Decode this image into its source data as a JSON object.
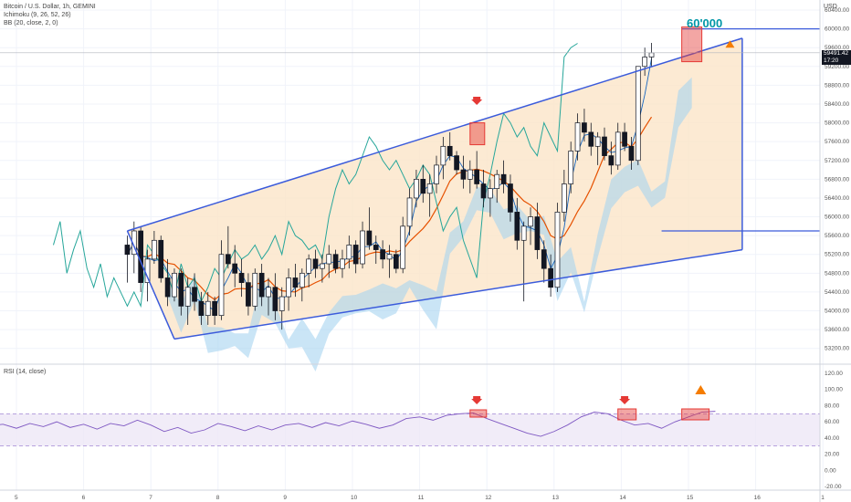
{
  "legend": {
    "symbol": "Bitcoin / U.S. Dollar, 1h, GEMINI",
    "ichimoku": "Ichimoku (9, 26, 52, 26)",
    "bb": "BB (20, close, 2, 0)",
    "rsi": "RSI (14, close)"
  },
  "currency": "USD",
  "annotation_label": "60'000",
  "last_price": "59491.42",
  "countdown": "17:20",
  "colors": {
    "candle": "#131722",
    "channel": "#3b5bdb",
    "channel_fill": "#fbe5c8",
    "conversion": "#1565c0",
    "base": "#c62828",
    "lagging": "#26a69a",
    "cloud_bull": "#a7d3f0",
    "cloud_bear": "#f4a9a0",
    "bb_basis": "#e65100",
    "rsi_line": "#7e57c2",
    "rsi_band": "#ede7f6",
    "marker": "#e53935"
  },
  "chart_data": [
    {
      "type": "candlestick",
      "title": "Bitcoin / U.S. Dollar, 1h, GEMINI",
      "ylabel": "USD",
      "ylim": [
        53000,
        60400
      ],
      "x_ticks": [
        "5",
        "6",
        "7",
        "8",
        "9",
        "10",
        "11",
        "12",
        "13",
        "14",
        "15",
        "16",
        "1"
      ],
      "y_ticks": [
        53200,
        53600,
        54000,
        54400,
        54800,
        55200,
        55600,
        56000,
        56400,
        56800,
        57200,
        57600,
        58000,
        58400,
        58800,
        59200,
        59600,
        60000,
        60400
      ],
      "series": [
        {
          "name": "BTCUSD",
          "values": [
            [
              6.65,
              55400,
              55600,
              54600,
              55200
            ],
            [
              6.75,
              55200,
              55900,
              54800,
              55700
            ],
            [
              6.85,
              55700,
              55800,
              54400,
              54600
            ],
            [
              6.95,
              54600,
              55300,
              54200,
              55100
            ],
            [
              7.05,
              55100,
              55700,
              55000,
              55500
            ],
            [
              7.15,
              55500,
              55600,
              54600,
              54700
            ],
            [
              7.25,
              54700,
              55100,
              54100,
              54300
            ],
            [
              7.35,
              54300,
              54900,
              54200,
              54800
            ],
            [
              7.45,
              54800,
              54900,
              53900,
              54100
            ],
            [
              7.55,
              54100,
              54700,
              53700,
              54500
            ],
            [
              7.65,
              54500,
              54800,
              54000,
              54200
            ],
            [
              7.75,
              54200,
              54400,
              53700,
              53900
            ],
            [
              7.85,
              53900,
              54400,
              53700,
              54200
            ],
            [
              7.95,
              54200,
              54300,
              53700,
              53900
            ],
            [
              8.05,
              53900,
              55500,
              53800,
              55200
            ],
            [
              8.15,
              55200,
              55800,
              54900,
              55000
            ],
            [
              8.25,
              55000,
              55400,
              54500,
              54800
            ],
            [
              8.35,
              54800,
              55100,
              54300,
              54600
            ],
            [
              8.45,
              54600,
              54800,
              53900,
              54100
            ],
            [
              8.55,
              54100,
              54900,
              54000,
              54800
            ],
            [
              8.65,
              54800,
              55000,
              54100,
              54300
            ],
            [
              8.75,
              54300,
              54700,
              53900,
              54500
            ],
            [
              8.85,
              54500,
              54800,
              53800,
              54000
            ],
            [
              8.95,
              54000,
              54500,
              53600,
              54300
            ],
            [
              9.05,
              54300,
              54900,
              54000,
              54700
            ],
            [
              9.15,
              54700,
              55000,
              54300,
              54500
            ],
            [
              9.25,
              54500,
              54900,
              54200,
              54800
            ],
            [
              9.35,
              54800,
              55200,
              54500,
              55100
            ],
            [
              9.45,
              55100,
              55300,
              54700,
              54900
            ],
            [
              9.55,
              54900,
              55200,
              54600,
              55000
            ],
            [
              9.65,
              55000,
              55400,
              54700,
              55200
            ],
            [
              9.75,
              55200,
              55300,
              54800,
              54900
            ],
            [
              9.85,
              54900,
              55300,
              54700,
              55100
            ],
            [
              9.95,
              55100,
              55600,
              54900,
              55400
            ],
            [
              10.05,
              55400,
              55500,
              54800,
              55000
            ],
            [
              10.15,
              55000,
              55900,
              54900,
              55700
            ],
            [
              10.25,
              55700,
              56200,
              55300,
              55400
            ],
            [
              10.35,
              55400,
              55600,
              55000,
              55300
            ],
            [
              10.45,
              55300,
              55500,
              54900,
              55100
            ],
            [
              10.55,
              55100,
              55400,
              54700,
              55200
            ],
            [
              10.65,
              55200,
              55300,
              54800,
              54900
            ],
            [
              10.75,
              54900,
              56000,
              54800,
              55800
            ],
            [
              10.85,
              55800,
              56600,
              55600,
              56400
            ],
            [
              10.95,
              56400,
              57000,
              56200,
              56800
            ],
            [
              11.05,
              56800,
              57100,
              56300,
              56500
            ],
            [
              11.15,
              56500,
              56900,
              56000,
              56700
            ],
            [
              11.25,
              56700,
              57300,
              56500,
              57100
            ],
            [
              11.35,
              57100,
              57700,
              56800,
              57500
            ],
            [
              11.45,
              57500,
              57800,
              57200,
              57300
            ],
            [
              11.55,
              57300,
              57400,
              56900,
              57000
            ],
            [
              11.65,
              57000,
              57300,
              56600,
              56800
            ],
            [
              11.75,
              56800,
              57200,
              56500,
              57000
            ],
            [
              11.85,
              57000,
              57400,
              56600,
              56700
            ],
            [
              11.95,
              56700,
              57000,
              56200,
              56400
            ],
            [
              12.05,
              56400,
              56800,
              56000,
              56600
            ],
            [
              12.15,
              56600,
              57000,
              56300,
              56900
            ],
            [
              12.25,
              56900,
              57200,
              56500,
              56700
            ],
            [
              12.35,
              56700,
              56900,
              55900,
              56100
            ],
            [
              12.45,
              56100,
              56400,
              55300,
              55500
            ],
            [
              12.55,
              55500,
              55900,
              54200,
              55800
            ],
            [
              12.65,
              55800,
              56200,
              55400,
              56000
            ],
            [
              12.75,
              56000,
              56300,
              55100,
              55300
            ],
            [
              12.85,
              55300,
              55500,
              54600,
              54900
            ],
            [
              12.95,
              54900,
              55200,
              54300,
              54500
            ],
            [
              13.05,
              54500,
              56300,
              54400,
              56100
            ],
            [
              13.15,
              56100,
              57000,
              55900,
              56700
            ],
            [
              13.25,
              56700,
              57600,
              56500,
              57400
            ],
            [
              13.35,
              57400,
              58200,
              57200,
              58000
            ],
            [
              13.45,
              58000,
              58300,
              57600,
              57800
            ],
            [
              13.55,
              57800,
              58000,
              57300,
              57500
            ],
            [
              13.65,
              57500,
              57800,
              57100,
              57700
            ],
            [
              13.75,
              57700,
              57900,
              57200,
              57300
            ],
            [
              13.85,
              57300,
              57600,
              56900,
              57100
            ],
            [
              13.95,
              57100,
              58000,
              57000,
              57800
            ],
            [
              14.05,
              57800,
              58000,
              57400,
              57500
            ],
            [
              14.15,
              57500,
              57700,
              57000,
              57200
            ],
            [
              14.25,
              57200,
              58700,
              57100,
              59200
            ],
            [
              14.35,
              59200,
              59600,
              59000,
              59400
            ],
            [
              14.45,
              59400,
              59700,
              59200,
              59491
            ]
          ]
        },
        {
          "name": "Channel upper",
          "values": [
            [
              6.65,
              55700
            ],
            [
              15.8,
              59800
            ]
          ]
        },
        {
          "name": "Channel lower",
          "values": [
            [
              7.35,
              53400
            ],
            [
              15.8,
              55300
            ]
          ]
        },
        {
          "name": "Horizontal level",
          "values": [
            [
              14.9,
              60000
            ],
            [
              16.0,
              60000
            ]
          ]
        },
        {
          "name": "Support level",
          "values": [
            [
              14.6,
              55700
            ],
            [
              16.0,
              55700
            ]
          ]
        }
      ],
      "annotations": [
        "60'000",
        "59491.42",
        "17:20"
      ]
    },
    {
      "type": "line",
      "title": "RSI (14, close)",
      "ylim": [
        -20,
        120
      ],
      "y_ticks": [
        -20,
        0,
        20,
        40,
        60,
        80,
        100,
        120
      ],
      "bands": [
        30,
        70
      ],
      "series": [
        {
          "name": "RSI",
          "values": [
            [
              4.6,
              55
            ],
            [
              4.8,
              57
            ],
            [
              5.0,
              52
            ],
            [
              5.2,
              58
            ],
            [
              5.4,
              54
            ],
            [
              5.6,
              60
            ],
            [
              5.8,
              53
            ],
            [
              6.0,
              57
            ],
            [
              6.2,
              51
            ],
            [
              6.4,
              58
            ],
            [
              6.6,
              55
            ],
            [
              6.8,
              62
            ],
            [
              7.0,
              56
            ],
            [
              7.2,
              48
            ],
            [
              7.4,
              53
            ],
            [
              7.6,
              46
            ],
            [
              7.8,
              50
            ],
            [
              8.0,
              58
            ],
            [
              8.2,
              54
            ],
            [
              8.4,
              49
            ],
            [
              8.6,
              55
            ],
            [
              8.8,
              50
            ],
            [
              9.0,
              56
            ],
            [
              9.2,
              58
            ],
            [
              9.4,
              53
            ],
            [
              9.6,
              59
            ],
            [
              9.8,
              55
            ],
            [
              10.0,
              61
            ],
            [
              10.2,
              57
            ],
            [
              10.4,
              52
            ],
            [
              10.6,
              56
            ],
            [
              10.8,
              64
            ],
            [
              11.0,
              66
            ],
            [
              11.2,
              62
            ],
            [
              11.4,
              68
            ],
            [
              11.6,
              70
            ],
            [
              11.8,
              71
            ],
            [
              12.0,
              64
            ],
            [
              12.2,
              58
            ],
            [
              12.4,
              52
            ],
            [
              12.6,
              46
            ],
            [
              12.8,
              42
            ],
            [
              13.0,
              48
            ],
            [
              13.2,
              56
            ],
            [
              13.4,
              66
            ],
            [
              13.6,
              72
            ],
            [
              13.8,
              70
            ],
            [
              14.0,
              62
            ],
            [
              14.2,
              56
            ],
            [
              14.4,
              58
            ],
            [
              14.6,
              52
            ],
            [
              14.8,
              60
            ],
            [
              15.0,
              66
            ],
            [
              15.2,
              72
            ],
            [
              15.4,
              73
            ]
          ]
        }
      ]
    }
  ]
}
